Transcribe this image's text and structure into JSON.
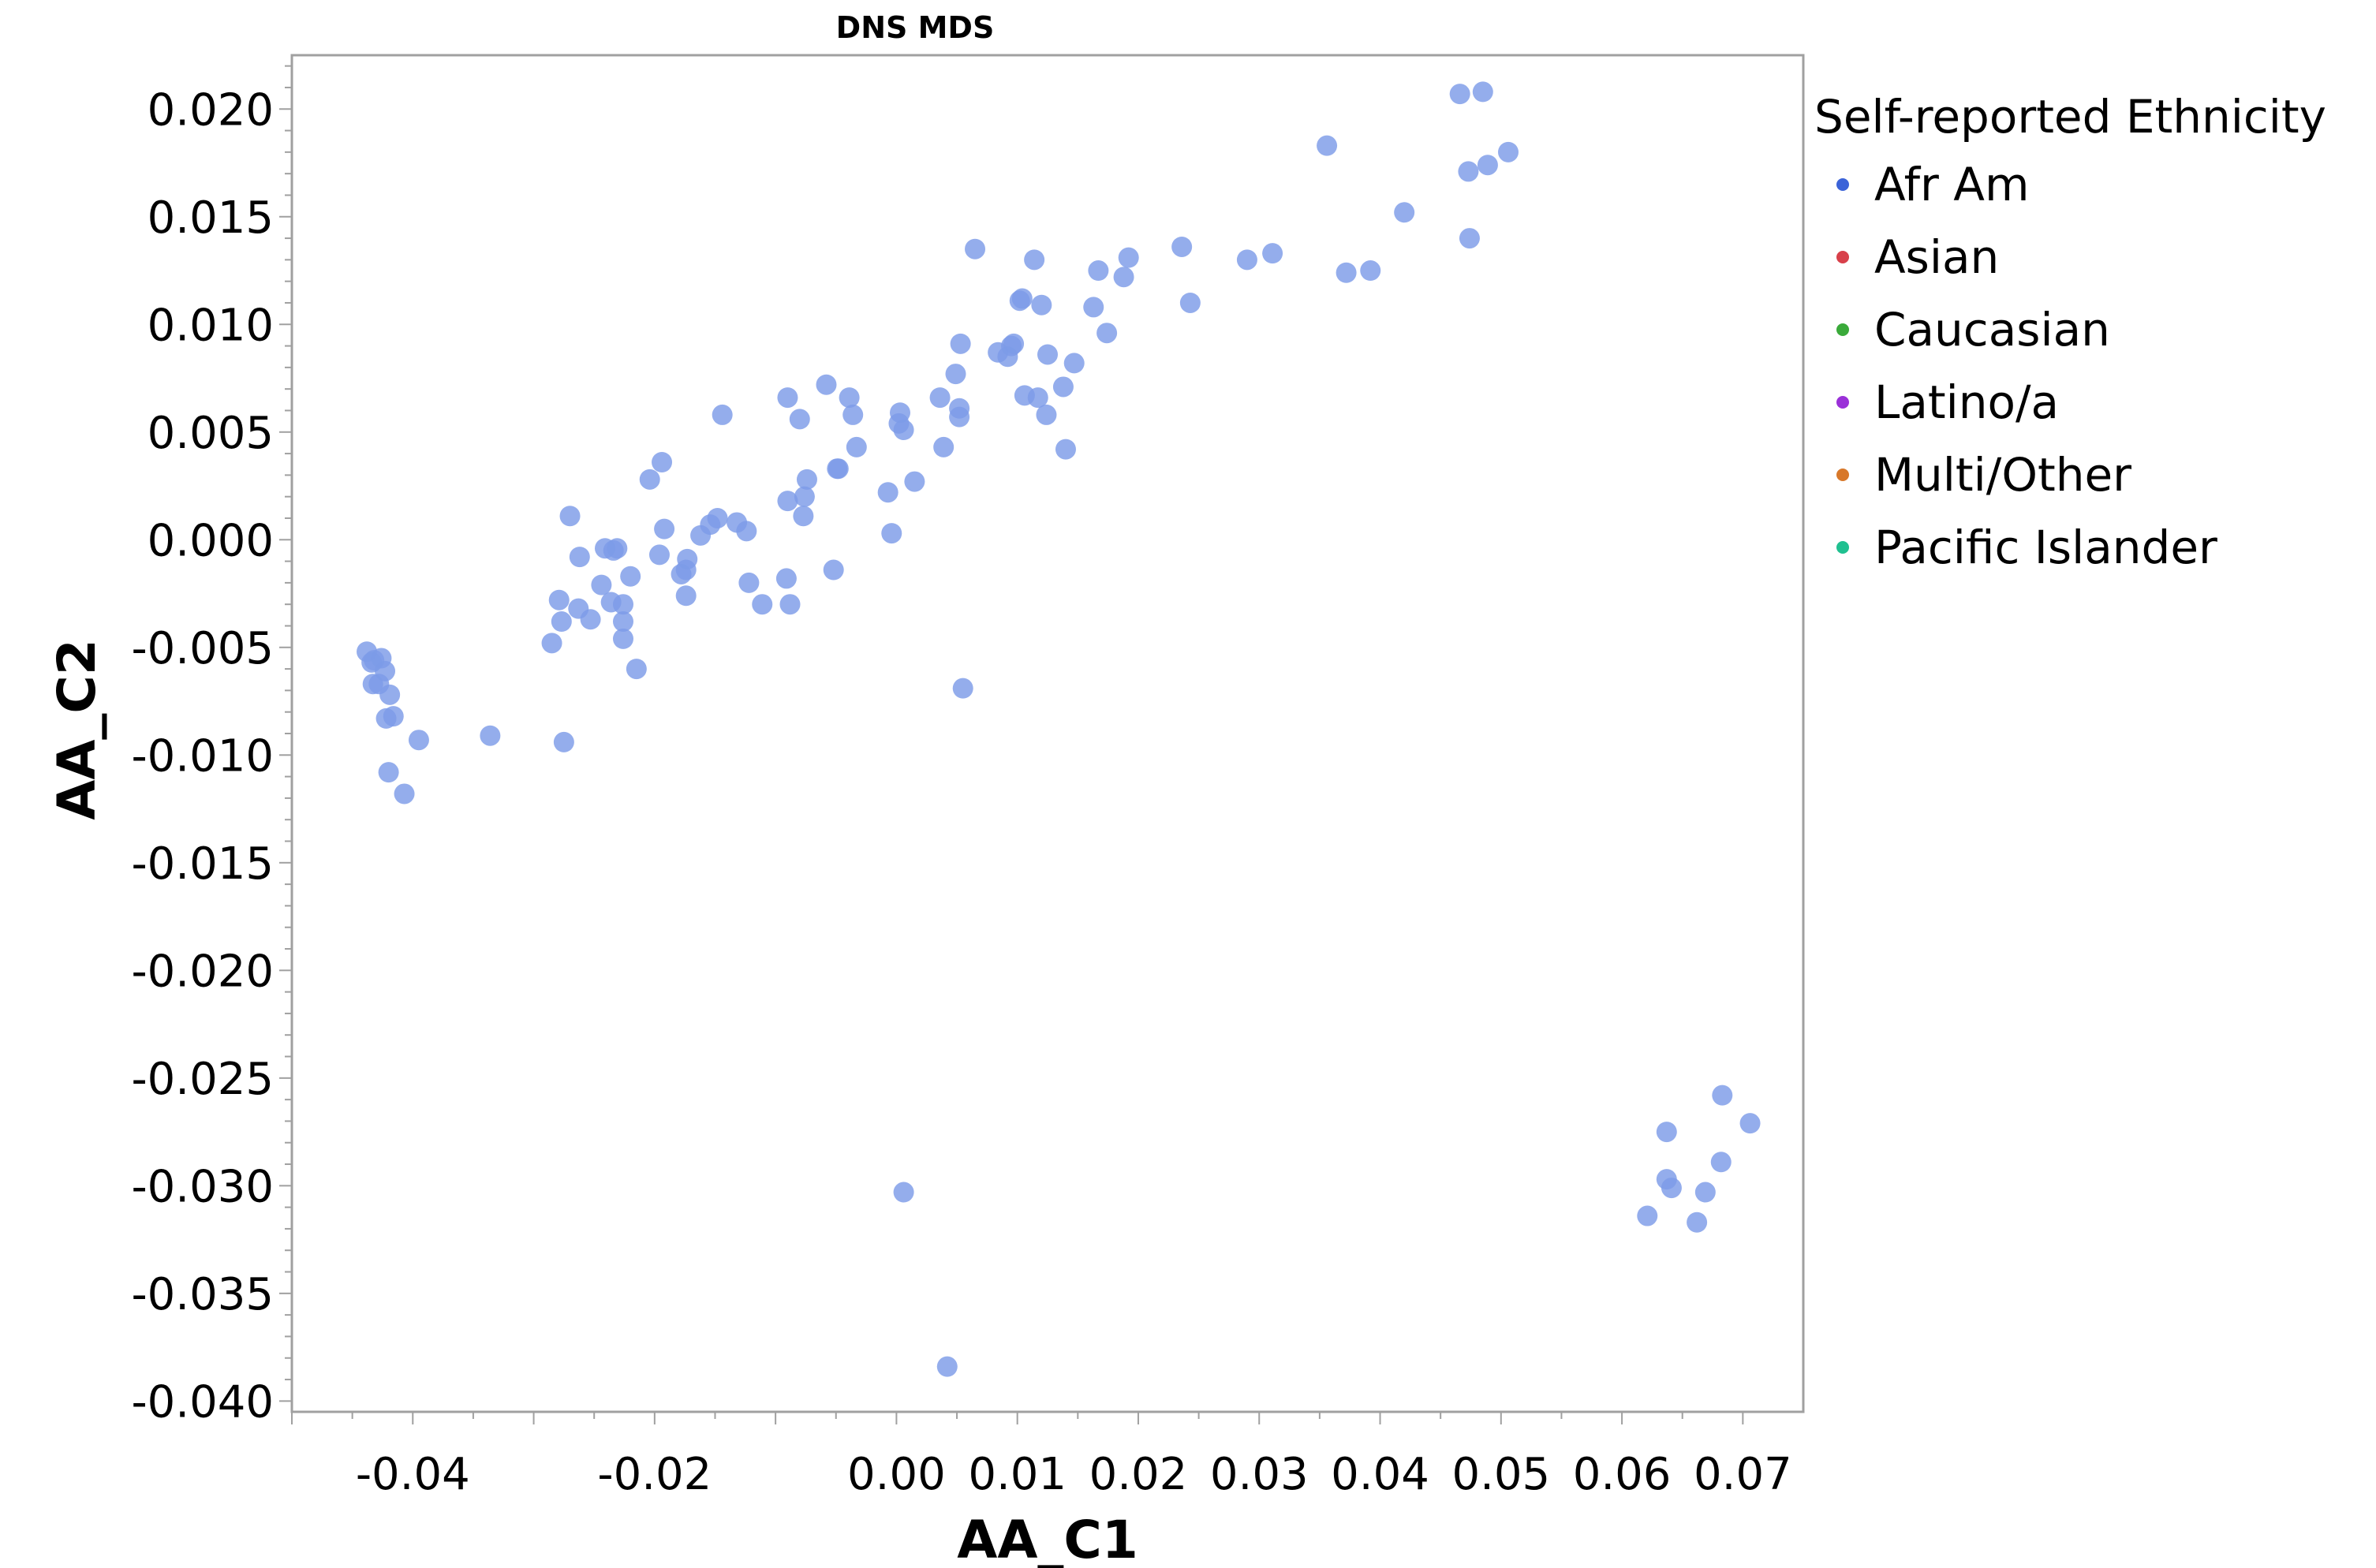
{
  "chart_data": {
    "type": "scatter",
    "title": "DNS MDS",
    "xlabel": "AA_C1",
    "ylabel": "AA_C2",
    "xlim": [
      -0.05,
      0.075
    ],
    "ylim": [
      -0.0405,
      0.0225
    ],
    "xticks": [
      -0.04,
      -0.02,
      0.0,
      0.01,
      0.02,
      0.03,
      0.04,
      0.05,
      0.06,
      0.07
    ],
    "xtick_labels": [
      "-0.04",
      "-0.02",
      "0.00",
      "0.01",
      "0.02",
      "0.03",
      "0.04",
      "0.05",
      "0.06",
      "0.07"
    ],
    "yticks": [
      0.02,
      0.015,
      0.01,
      0.005,
      0.0,
      -0.005,
      -0.01,
      -0.015,
      -0.02,
      -0.025,
      -0.03,
      -0.035,
      -0.04
    ],
    "ytick_labels": [
      "0.020",
      "0.015",
      "0.010",
      "0.005",
      "0.000",
      "-0.005",
      "-0.010",
      "-0.015",
      "-0.020",
      "-0.025",
      "-0.030",
      "-0.035",
      "-0.040"
    ],
    "grid": false,
    "legend": {
      "title": "Self-reported Ethnicity",
      "position": "right",
      "entries": [
        {
          "label": "Afr Am",
          "color": "#3b63d8"
        },
        {
          "label": "Asian",
          "color": "#d8404a"
        },
        {
          "label": "Caucasian",
          "color": "#3aaa3a"
        },
        {
          "label": "Latino/a",
          "color": "#9a30d8"
        },
        {
          "label": "Multi/Other",
          "color": "#d8782a"
        },
        {
          "label": "Pacific Islander",
          "color": "#20c090"
        }
      ]
    },
    "point_color": "#7d9be8",
    "series": [
      {
        "name": "Afr Am",
        "points": [
          [
            -0.0438,
            -0.0052
          ],
          [
            -0.0434,
            -0.0057
          ],
          [
            -0.0432,
            -0.0056
          ],
          [
            -0.0426,
            -0.0055
          ],
          [
            -0.0423,
            -0.0061
          ],
          [
            -0.0433,
            -0.0067
          ],
          [
            -0.0428,
            -0.0067
          ],
          [
            -0.0419,
            -0.0072
          ],
          [
            -0.0422,
            -0.0083
          ],
          [
            -0.0416,
            -0.0082
          ],
          [
            -0.042,
            -0.0108
          ],
          [
            -0.0407,
            -0.0118
          ],
          [
            -0.0395,
            -0.0093
          ],
          [
            -0.0336,
            -0.0091
          ],
          [
            -0.0275,
            -0.0094
          ],
          [
            -0.0285,
            -0.0048
          ],
          [
            -0.0277,
            -0.0038
          ],
          [
            -0.0279,
            -0.0028
          ],
          [
            -0.0263,
            -0.0032
          ],
          [
            -0.0253,
            -0.0037
          ],
          [
            -0.0244,
            -0.0021
          ],
          [
            -0.0236,
            -0.0029
          ],
          [
            -0.0226,
            -0.003
          ],
          [
            -0.0226,
            -0.0038
          ],
          [
            -0.0226,
            -0.0046
          ],
          [
            -0.022,
            -0.0017
          ],
          [
            -0.0215,
            -0.006
          ],
          [
            -0.027,
            0.0011
          ],
          [
            -0.0262,
            -0.0008
          ],
          [
            -0.0241,
            -0.0004
          ],
          [
            -0.0234,
            -0.0005
          ],
          [
            -0.0231,
            -0.0004
          ],
          [
            -0.0196,
            -0.0007
          ],
          [
            -0.0204,
            0.0028
          ],
          [
            -0.0194,
            0.0036
          ],
          [
            -0.0192,
            0.0005
          ],
          [
            -0.0178,
            -0.0016
          ],
          [
            -0.0174,
            -0.0014
          ],
          [
            -0.0173,
            -0.0009
          ],
          [
            -0.0174,
            -0.0026
          ],
          [
            -0.0162,
            0.0002
          ],
          [
            -0.0154,
            0.0007
          ],
          [
            -0.0148,
            0.001
          ],
          [
            -0.0144,
            0.0058
          ],
          [
            -0.0132,
            0.0008
          ],
          [
            -0.0124,
            0.0004
          ],
          [
            -0.0122,
            -0.002
          ],
          [
            -0.0111,
            -0.003
          ],
          [
            -0.0091,
            -0.0018
          ],
          [
            -0.0088,
            -0.003
          ],
          [
            -0.009,
            0.0066
          ],
          [
            -0.008,
            0.0056
          ],
          [
            -0.009,
            0.0018
          ],
          [
            -0.0076,
            0.002
          ],
          [
            -0.0077,
            0.0011
          ],
          [
            -0.0074,
            0.0028
          ],
          [
            -0.0058,
            0.0072
          ],
          [
            -0.0049,
            0.0033
          ],
          [
            -0.0048,
            0.0033
          ],
          [
            -0.0052,
            -0.0014
          ],
          [
            -0.0039,
            0.0066
          ],
          [
            -0.0036,
            0.0058
          ],
          [
            -0.0033,
            0.0043
          ],
          [
            -0.0007,
            0.0022
          ],
          [
            -0.0004,
            0.0003
          ],
          [
            0.0003,
            0.0059
          ],
          [
            0.0002,
            0.0054
          ],
          [
            0.0006,
            0.0051
          ],
          [
            0.0015,
            0.0027
          ],
          [
            0.0036,
            0.0066
          ],
          [
            0.0039,
            0.0043
          ],
          [
            0.0049,
            0.0077
          ],
          [
            0.0052,
            0.0061
          ],
          [
            0.0052,
            0.0057
          ],
          [
            0.0053,
            0.0091
          ],
          [
            0.0065,
            0.0135
          ],
          [
            0.0084,
            0.0087
          ],
          [
            0.0092,
            0.0085
          ],
          [
            0.0095,
            0.009
          ],
          [
            0.0097,
            0.0091
          ],
          [
            0.0102,
            0.0111
          ],
          [
            0.0104,
            0.0112
          ],
          [
            0.0106,
            0.0067
          ],
          [
            0.0114,
            0.013
          ],
          [
            0.0117,
            0.0066
          ],
          [
            0.012,
            0.0109
          ],
          [
            0.0124,
            0.0058
          ],
          [
            0.0125,
            0.0086
          ],
          [
            0.0138,
            0.0071
          ],
          [
            0.014,
            0.0042
          ],
          [
            0.0147,
            0.0082
          ],
          [
            0.0163,
            0.0108
          ],
          [
            0.0167,
            0.0125
          ],
          [
            0.0174,
            0.0096
          ],
          [
            0.0188,
            0.0122
          ],
          [
            0.0192,
            0.0131
          ],
          [
            0.0236,
            0.0136
          ],
          [
            0.0243,
            0.011
          ],
          [
            0.029,
            0.013
          ],
          [
            0.0311,
            0.0133
          ],
          [
            0.0356,
            0.0183
          ],
          [
            0.0372,
            0.0124
          ],
          [
            0.0392,
            0.0125
          ],
          [
            0.042,
            0.0152
          ],
          [
            0.0466,
            0.0207
          ],
          [
            0.0485,
            0.0208
          ],
          [
            0.0473,
            0.0171
          ],
          [
            0.0489,
            0.0174
          ],
          [
            0.0506,
            0.018
          ],
          [
            0.0474,
            0.014
          ],
          [
            0.0055,
            -0.0069
          ],
          [
            0.0006,
            -0.0303
          ],
          [
            0.0042,
            -0.0384
          ],
          [
            0.0621,
            -0.0314
          ],
          [
            0.0637,
            -0.0297
          ],
          [
            0.0641,
            -0.0301
          ],
          [
            0.0662,
            -0.0317
          ],
          [
            0.0669,
            -0.0303
          ],
          [
            0.0682,
            -0.0289
          ],
          [
            0.0683,
            -0.0258
          ],
          [
            0.0706,
            -0.0271
          ],
          [
            0.0637,
            -0.0275
          ]
        ]
      }
    ]
  }
}
